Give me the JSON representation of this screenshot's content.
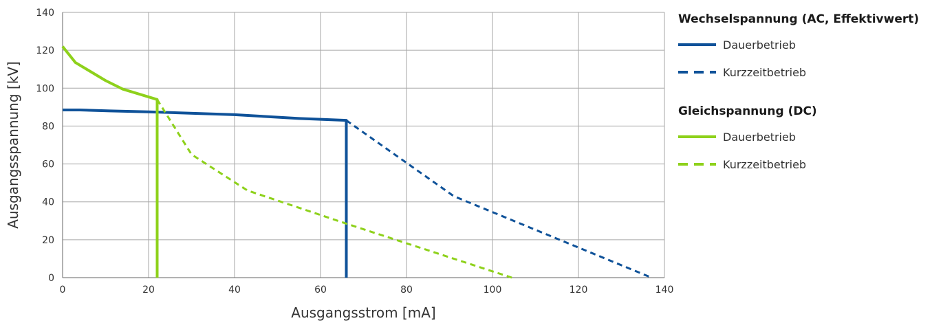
{
  "chart_data": {
    "type": "line",
    "xlabel": "Ausgangsstrom [mA]",
    "ylabel": "Ausgangsspannung [kV]",
    "xlim": [
      0,
      140
    ],
    "ylim": [
      0,
      140
    ],
    "x_ticks": [
      0,
      20,
      40,
      60,
      80,
      100,
      120,
      140
    ],
    "y_ticks": [
      0,
      20,
      40,
      60,
      80,
      100,
      120,
      140
    ],
    "grid": true,
    "legend_placement": "right",
    "series": [
      {
        "group": "Wechselspannung (AC, Effektivwert)",
        "name": "Dauerbetrieb",
        "color": "#0f5299",
        "dashed": false,
        "x": [
          0,
          4,
          11,
          20,
          40,
          55,
          66,
          66
        ],
        "y": [
          88.5,
          88.5,
          88,
          87.5,
          86,
          84,
          83,
          0
        ]
      },
      {
        "group": "Wechselspannung (AC, Effektivwert)",
        "name": "Kurzzeitbetrieb",
        "color": "#0f5299",
        "dashed": true,
        "x": [
          66,
          91,
          137
        ],
        "y": [
          83,
          43,
          0
        ]
      },
      {
        "group": "Gleichspannung (DC)",
        "name": "Dauerbetrieb",
        "color": "#8ed11b",
        "dashed": false,
        "x": [
          0,
          3,
          10,
          14,
          22,
          22
        ],
        "y": [
          122,
          113.5,
          104,
          99.5,
          94,
          0
        ]
      },
      {
        "group": "Gleichspannung (DC)",
        "name": "Kurzzeitbetrieb",
        "color": "#8ed11b",
        "dashed": true,
        "x": [
          22,
          30,
          43,
          66,
          104.5
        ],
        "y": [
          94,
          65,
          46,
          28.5,
          0
        ]
      }
    ]
  },
  "legend": {
    "groups": [
      {
        "title": "Wechselspannung (AC, Effektivwert)",
        "items": [
          {
            "label": "Dauerbetrieb",
            "color": "#0f5299",
            "dashed": false
          },
          {
            "label": "Kurzzeitbetrieb",
            "color": "#0f5299",
            "dashed": true
          }
        ]
      },
      {
        "title": "Gleichspannung (DC)",
        "items": [
          {
            "label": "Dauerbetrieb",
            "color": "#8ed11b",
            "dashed": false
          },
          {
            "label": "Kurzzeitbetrieb",
            "color": "#8ed11b",
            "dashed": true
          }
        ]
      }
    ]
  }
}
